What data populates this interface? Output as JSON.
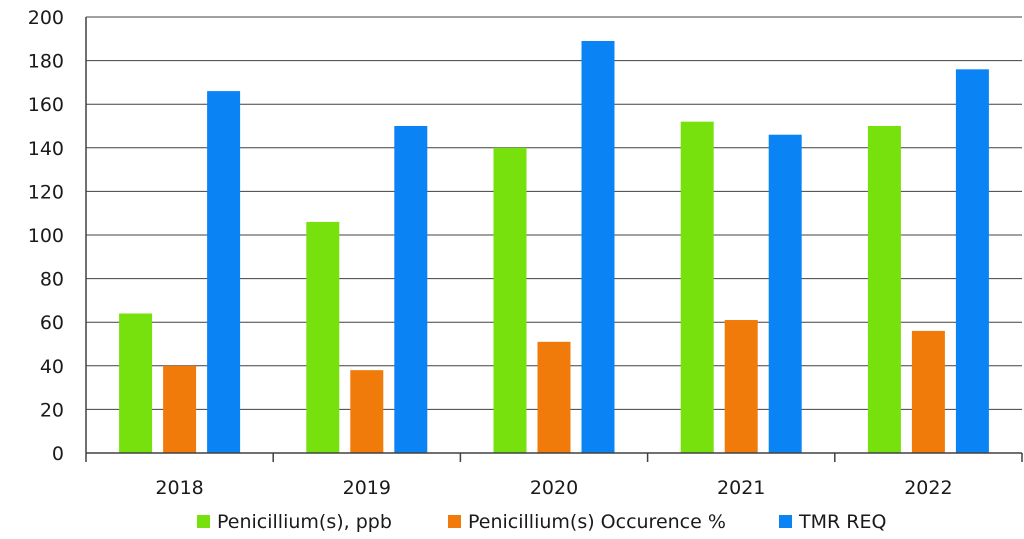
{
  "chart_data": {
    "type": "bar",
    "title": "",
    "xlabel": "",
    "ylabel": "",
    "categories": [
      "2018",
      "2019",
      "2020",
      "2021",
      "2022"
    ],
    "series": [
      {
        "name": "Penicillium(s), ppb",
        "color": "#77e10d",
        "values": [
          64,
          106,
          140,
          152,
          150
        ]
      },
      {
        "name": "Penicillium(s) Occurence %",
        "color": "#f07b0a",
        "values": [
          40,
          38,
          51,
          61,
          56
        ]
      },
      {
        "name": "TMR REQ",
        "color": "#0a84f5",
        "values": [
          166,
          150,
          189,
          146,
          176
        ]
      }
    ],
    "ylim": [
      0,
      200
    ],
    "yticks": [
      "0",
      "20",
      "40",
      "60",
      "80",
      "100",
      "120",
      "140",
      "160",
      "180",
      "200"
    ],
    "grid": true,
    "legend_position": "bottom"
  }
}
